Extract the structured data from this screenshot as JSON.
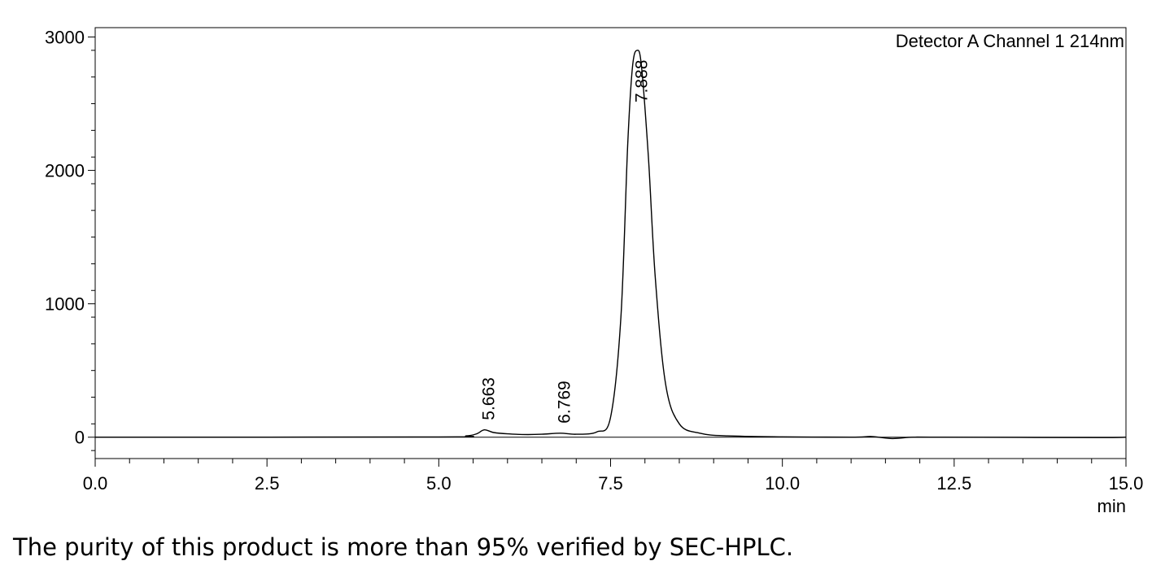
{
  "chart_data": {
    "type": "line",
    "legend": "Detector A Channel 1 214nm",
    "x_unit": "min",
    "xlim": [
      0.0,
      15.0
    ],
    "ylim": [
      -160,
      3070
    ],
    "x_ticks": [
      "0.0",
      "2.5",
      "5.0",
      "7.5",
      "10.0",
      "12.5",
      "15.0"
    ],
    "y_ticks": [
      "0",
      "1000",
      "2000",
      "3000"
    ],
    "peaks": [
      {
        "label": "5.663",
        "rt": 5.663,
        "height": 55
      },
      {
        "label": "6.769",
        "rt": 6.769,
        "height": 30
      },
      {
        "label": "7.888",
        "rt": 7.888,
        "height": 2900
      }
    ],
    "series": [
      {
        "x": [
          0.0,
          5.0,
          5.4,
          5.55,
          5.663,
          5.8,
          6.0,
          6.3,
          6.5,
          6.769,
          7.0,
          7.3,
          7.5,
          7.65,
          7.75,
          7.82,
          7.888,
          7.95,
          8.05,
          8.15,
          8.3,
          8.5,
          8.8,
          9.2,
          10.0,
          11.0,
          11.3,
          11.6,
          11.9,
          12.3,
          14.6,
          15.0
        ],
        "y": [
          0,
          2,
          10,
          25,
          55,
          35,
          25,
          20,
          22,
          30,
          22,
          40,
          150,
          900,
          2200,
          2780,
          2900,
          2780,
          2100,
          1200,
          400,
          100,
          30,
          10,
          3,
          0,
          5,
          -10,
          0,
          0,
          -3,
          0
        ]
      }
    ]
  },
  "caption": "The purity of this product is more than 95% verified by SEC-HPLC."
}
